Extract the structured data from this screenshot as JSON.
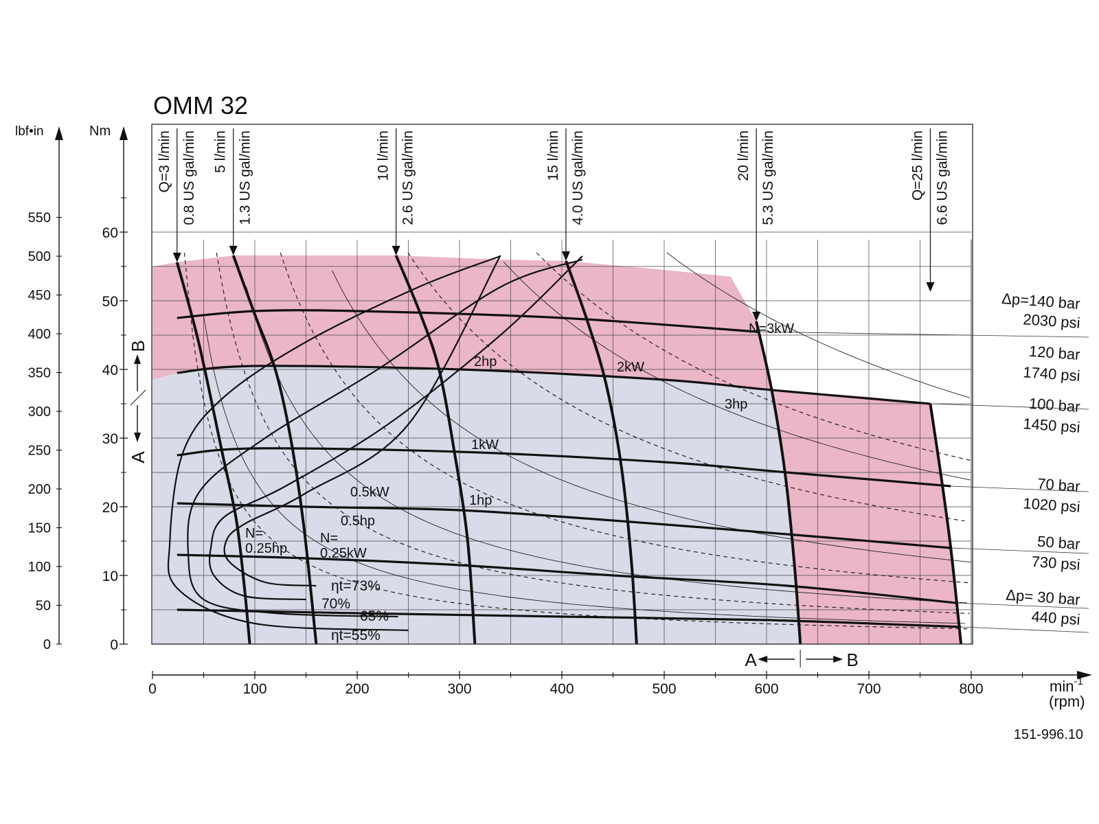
{
  "chart_data": {
    "type": "line",
    "title": "OMM 32",
    "reference": "151-996.10",
    "xlabel": "min-1",
    "xlabel_sup": "-1",
    "xlabel_base": "min",
    "xlabel2": "(rpm)",
    "ylabel_left": "lbf•in",
    "ylabel": "Nm",
    "xlim": [
      0,
      800
    ],
    "ylim": [
      0,
      60
    ],
    "x_ticks": [
      "0",
      "100",
      "200",
      "300",
      "400",
      "500",
      "600",
      "700",
      "800"
    ],
    "y_ticks": [
      "0",
      "10",
      "20",
      "30",
      "40",
      "50",
      "60"
    ],
    "y2_ticks": [
      "0",
      "50",
      "100",
      "150",
      "200",
      "250",
      "300",
      "350",
      "400",
      "450",
      "500",
      "550"
    ],
    "grid": true,
    "colors": {
      "intermittent": "#ebb6c6",
      "continuous": "#d9dbe9",
      "line": "#111111"
    },
    "flow_lines": [
      {
        "l": "Q=3 l/min",
        "us": "0.8 US gal/min",
        "points": [
          [
            24,
            55.6
          ],
          [
            45,
            44
          ],
          [
            68,
            28
          ],
          [
            82,
            18
          ],
          [
            90,
            8
          ],
          [
            95,
            0
          ]
        ]
      },
      {
        "l": "5 l/min",
        "us": "1.3 US gal/min",
        "points": [
          [
            79,
            56.6
          ],
          [
            100,
            48
          ],
          [
            120,
            40
          ],
          [
            135,
            30
          ],
          [
            148,
            17
          ],
          [
            160,
            0
          ]
        ]
      },
      {
        "l": "10 l/min",
        "us": "2.6 US gal/min",
        "points": [
          [
            238,
            56.6
          ],
          [
            262,
            48
          ],
          [
            280,
            40
          ],
          [
            295,
            28
          ],
          [
            308,
            15
          ],
          [
            315,
            0
          ]
        ]
      },
      {
        "l": "15 l/min",
        "us": "4.0 US gal/min",
        "points": [
          [
            404,
            55.8
          ],
          [
            425,
            47
          ],
          [
            443,
            38
          ],
          [
            458,
            26
          ],
          [
            468,
            12
          ],
          [
            473,
            0
          ]
        ]
      },
      {
        "l": "20 l/min",
        "us": "5.3 US gal/min",
        "points": [
          [
            590,
            47
          ],
          [
            605,
            37
          ],
          [
            618,
            25
          ],
          [
            627,
            12
          ],
          [
            633,
            0
          ]
        ]
      },
      {
        "l": "Q=25 l/min",
        "us": "6.6 US gal/min",
        "points": [
          [
            760,
            35
          ],
          [
            770,
            25
          ],
          [
            780,
            14
          ],
          [
            790,
            0
          ]
        ]
      }
    ],
    "pressure_lines": [
      {
        "bar": "Δp=140 bar",
        "psi": "2030 psi",
        "points": [
          [
            24,
            47.5
          ],
          [
            100,
            48.5
          ],
          [
            200,
            48.5
          ],
          [
            400,
            47.5
          ],
          [
            590,
            45.5
          ]
        ]
      },
      {
        "bar": "120 bar",
        "psi": "1740 psi",
        "points": [
          [
            24,
            39.5
          ],
          [
            100,
            40.5
          ],
          [
            300,
            40
          ],
          [
            500,
            38.5
          ],
          [
            605,
            37
          ],
          [
            760,
            35
          ]
        ]
      },
      {
        "bar": "100 bar",
        "psi": "1450 psi",
        "points": [
          [
            24,
            27.5
          ],
          [
            100,
            28.5
          ],
          [
            300,
            28
          ],
          [
            500,
            26.5
          ],
          [
            620,
            25
          ],
          [
            780,
            23
          ]
        ]
      },
      {
        "bar": "70 bar",
        "psi": "1020 psi",
        "points": [
          [
            24,
            20.5
          ],
          [
            150,
            20
          ],
          [
            300,
            19.5
          ],
          [
            450,
            18
          ],
          [
            620,
            16
          ],
          [
            780,
            14
          ]
        ]
      },
      {
        "bar": "50 bar",
        "psi": "730 psi",
        "points": [
          [
            24,
            13
          ],
          [
            150,
            12.5
          ],
          [
            300,
            11.5
          ],
          [
            450,
            10
          ],
          [
            620,
            8.5
          ],
          [
            785,
            6
          ]
        ]
      },
      {
        "bar": "Δp= 30 bar",
        "psi": "440 psi",
        "points": [
          [
            24,
            5
          ],
          [
            200,
            4.5
          ],
          [
            400,
            4
          ],
          [
            600,
            3.5
          ],
          [
            790,
            2.5
          ]
        ]
      }
    ],
    "efficiency_curves": [
      {
        "label": "ηt=73%",
        "points": [
          [
            160,
            8.5
          ],
          [
            110,
            9
          ],
          [
            75,
            12
          ],
          [
            72,
            15
          ],
          [
            90,
            17.5
          ],
          [
            150,
            22
          ],
          [
            250,
            32
          ],
          [
            340,
            56.6
          ]
        ]
      },
      {
        "label": "70%",
        "points": [
          [
            150,
            6.5
          ],
          [
            90,
            7
          ],
          [
            60,
            10
          ],
          [
            57,
            14
          ],
          [
            70,
            18.5
          ],
          [
            130,
            23
          ],
          [
            230,
            32
          ],
          [
            340,
            45
          ],
          [
            420,
            56.5
          ]
        ]
      },
      {
        "label": "65%",
        "points": [
          [
            240,
            4
          ],
          [
            120,
            4.5
          ],
          [
            50,
            6.5
          ],
          [
            35,
            13
          ],
          [
            45,
            22
          ],
          [
            110,
            30
          ],
          [
            220,
            40
          ],
          [
            340,
            52
          ],
          [
            420,
            56
          ]
        ]
      },
      {
        "label": "ηt=55%",
        "points": [
          [
            250,
            2
          ],
          [
            100,
            3
          ],
          [
            25,
            8
          ],
          [
            17,
            15
          ],
          [
            30,
            28
          ],
          [
            70,
            36
          ],
          [
            150,
            44
          ],
          [
            260,
            52
          ],
          [
            340,
            56.5
          ]
        ]
      }
    ],
    "power_labels": [
      "N=3kW",
      "2kW",
      "1kW",
      "0.5kW",
      "N= 0.25kW",
      "3hp",
      "2hp",
      "1hp",
      "0.5hp",
      "N= 0.25hp"
    ],
    "direction_label": {
      "a": "A",
      "b": "B"
    }
  }
}
